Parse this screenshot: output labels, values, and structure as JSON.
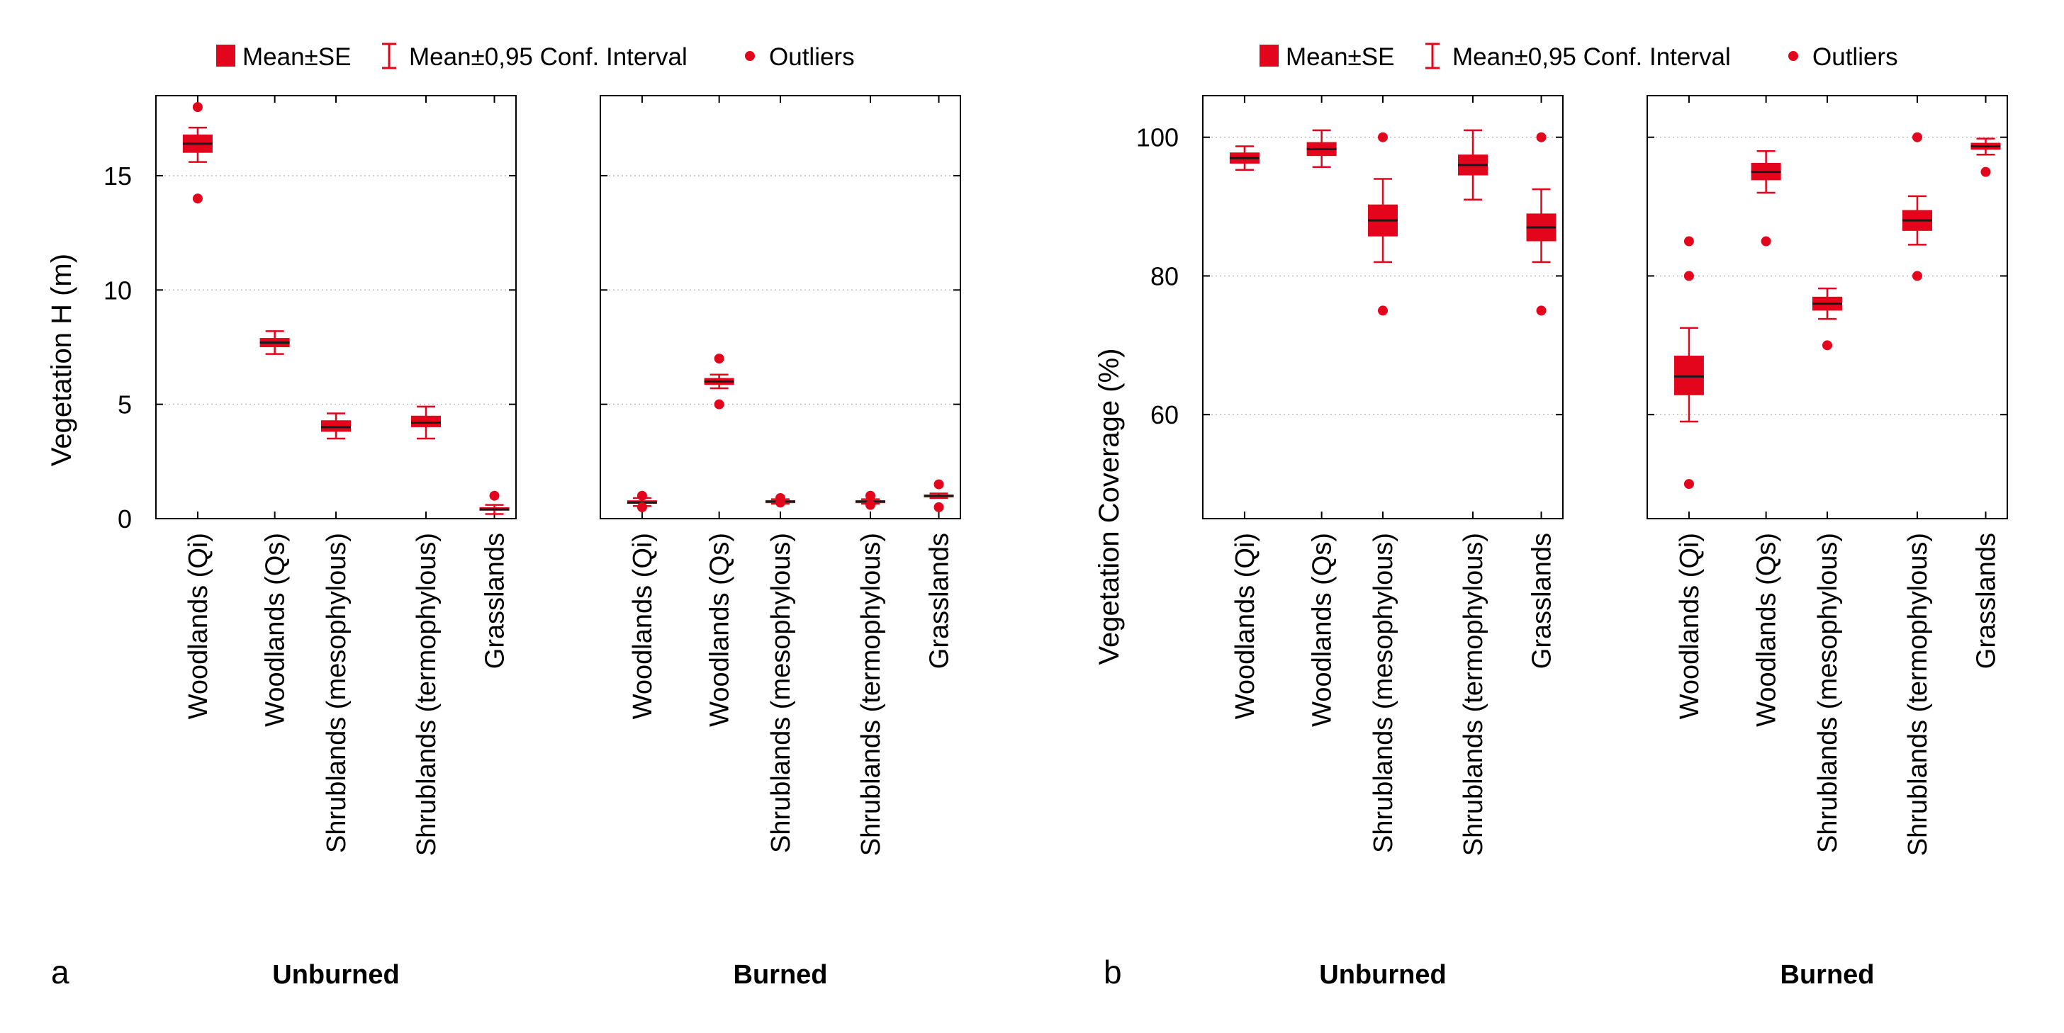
{
  "colors": {
    "box": "#e3051b",
    "median": "#1a1a1a",
    "grid": "#bdbdbd",
    "frame": "#000000"
  },
  "legend": {
    "mean_se": "Mean±SE",
    "conf_interval": "Mean±0,95 Conf. Interval",
    "outliers": "Outliers"
  },
  "chart_data": [
    {
      "type": "boxplot",
      "panel_label": "a",
      "ylabel": "Vegetation H (m)",
      "ylim": [
        0,
        18.5
      ],
      "yticks": [
        0,
        5,
        10,
        15
      ],
      "grid": "horizontal dotted",
      "categories": [
        "Woodlands (Qi)",
        "Woodlands (Qs)",
        "Shrublands (mesophylous)",
        "Shrublands (termophylous)",
        "Grasslands"
      ],
      "groups": [
        {
          "name": "Unburned",
          "boxes": [
            {
              "mean": 16.4,
              "se": [
                16.0,
                16.8
              ],
              "ci": [
                15.6,
                17.1
              ],
              "outliers": [
                14.0,
                18.0
              ]
            },
            {
              "mean": 7.7,
              "se": [
                7.5,
                7.9
              ],
              "ci": [
                7.2,
                8.2
              ],
              "outliers": []
            },
            {
              "mean": 4.0,
              "se": [
                3.8,
                4.3
              ],
              "ci": [
                3.5,
                4.6
              ],
              "outliers": []
            },
            {
              "mean": 4.2,
              "se": [
                4.0,
                4.5
              ],
              "ci": [
                3.5,
                4.9
              ],
              "outliers": []
            },
            {
              "mean": 0.4,
              "se": [
                0.35,
                0.5
              ],
              "ci": [
                0.2,
                0.6
              ],
              "outliers": [
                1.0
              ]
            }
          ]
        },
        {
          "name": "Burned",
          "boxes": [
            {
              "mean": 0.7,
              "se": [
                0.65,
                0.8
              ],
              "ci": [
                0.55,
                0.9
              ],
              "outliers": [
                0.5,
                1.0
              ]
            },
            {
              "mean": 6.0,
              "se": [
                5.85,
                6.15
              ],
              "ci": [
                5.7,
                6.3
              ],
              "outliers": [
                5.0,
                7.0
              ]
            },
            {
              "mean": 0.75,
              "se": [
                0.7,
                0.8
              ],
              "ci": [
                0.65,
                0.85
              ],
              "outliers": [
                0.7,
                0.9
              ]
            },
            {
              "mean": 0.75,
              "se": [
                0.7,
                0.8
              ],
              "ci": [
                0.65,
                0.85
              ],
              "outliers": [
                0.6,
                1.0
              ]
            },
            {
              "mean": 1.0,
              "se": [
                0.95,
                1.05
              ],
              "ci": [
                0.9,
                1.1
              ],
              "outliers": [
                0.5,
                1.5
              ]
            }
          ]
        }
      ]
    },
    {
      "type": "boxplot",
      "panel_label": "b",
      "ylabel": "Vegetation Coverage (%)",
      "ylim": [
        45,
        106
      ],
      "yticks": [
        60,
        80,
        100
      ],
      "grid": "horizontal dotted",
      "categories": [
        "Woodlands (Qi)",
        "Woodlands (Qs)",
        "Shrublands (mesophylous)",
        "Shrublands (termophylous)",
        "Grasslands"
      ],
      "groups": [
        {
          "name": "Unburned",
          "boxes": [
            {
              "mean": 97,
              "se": [
                96.2,
                97.8
              ],
              "ci": [
                95.3,
                98.7
              ],
              "outliers": []
            },
            {
              "mean": 98.3,
              "se": [
                97.3,
                99.3
              ],
              "ci": [
                95.7,
                101
              ],
              "outliers": []
            },
            {
              "mean": 88,
              "se": [
                85.7,
                90.3
              ],
              "ci": [
                82,
                94
              ],
              "outliers": [
                75,
                100
              ]
            },
            {
              "mean": 96,
              "se": [
                94.5,
                97.5
              ],
              "ci": [
                91,
                101
              ],
              "outliers": []
            },
            {
              "mean": 87,
              "se": [
                85,
                89
              ],
              "ci": [
                82,
                92.5
              ],
              "outliers": [
                75,
                100
              ]
            }
          ]
        },
        {
          "name": "Burned",
          "boxes": [
            {
              "mean": 65.5,
              "se": [
                62.8,
                68.5
              ],
              "ci": [
                59,
                72.5
              ],
              "outliers": [
                50,
                80,
                85
              ]
            },
            {
              "mean": 95,
              "se": [
                93.8,
                96.3
              ],
              "ci": [
                92,
                98
              ],
              "outliers": [
                85
              ]
            },
            {
              "mean": 76,
              "se": [
                75,
                77
              ],
              "ci": [
                73.8,
                78.2
              ],
              "outliers": [
                70
              ]
            },
            {
              "mean": 88,
              "se": [
                86.5,
                89.5
              ],
              "ci": [
                84.5,
                91.5
              ],
              "outliers": [
                80,
                100
              ]
            },
            {
              "mean": 98.7,
              "se": [
                98.2,
                99.2
              ],
              "ci": [
                97.5,
                99.8
              ],
              "outliers": [
                95
              ]
            }
          ]
        }
      ]
    }
  ]
}
